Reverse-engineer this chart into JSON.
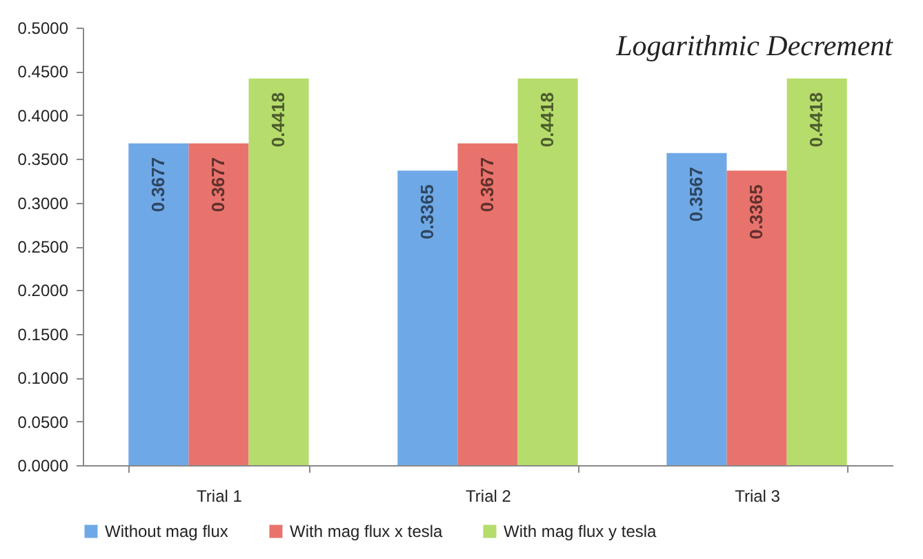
{
  "chart_data": {
    "type": "bar",
    "title": "Logarithmic Decrement",
    "categories": [
      "Trial 1",
      "Trial 2",
      "Trial 3"
    ],
    "series": [
      {
        "name": "Without mag flux",
        "color": "#6fa8e6",
        "values": [
          0.3677,
          0.3365,
          0.3567
        ]
      },
      {
        "name": "With mag flux x tesla",
        "color": "#e8736c",
        "values": [
          0.3677,
          0.3677,
          0.3365
        ]
      },
      {
        "name": "With mag flux y tesla",
        "color": "#b6dc6c",
        "values": [
          0.4418,
          0.4418,
          0.4418
        ]
      }
    ],
    "ylim": [
      0,
      0.5
    ],
    "yticks": [
      {
        "value": 0,
        "label": "0.0000"
      },
      {
        "value": 0.05,
        "label": "0.0500"
      },
      {
        "value": 0.1,
        "label": "0.1000"
      },
      {
        "value": 0.15,
        "label": "0.1500"
      },
      {
        "value": 0.2,
        "label": "0.2000"
      },
      {
        "value": 0.25,
        "label": "0.2500"
      },
      {
        "value": 0.3,
        "label": "0.3000"
      },
      {
        "value": 0.35,
        "label": "0.3500"
      },
      {
        "value": 0.4,
        "label": "0.4000"
      },
      {
        "value": 0.45,
        "label": "0.4500"
      },
      {
        "value": 0.5,
        "label": "0.5000"
      }
    ],
    "grid": false,
    "legend": "bottom",
    "data_labels": true
  }
}
